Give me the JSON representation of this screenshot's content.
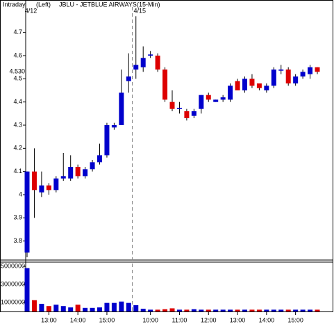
{
  "chart_data": [
    {
      "type": "candlestick",
      "title": "JBLU - JETBLUE AIRWAYS",
      "subtitle": "Intraday",
      "axis_label": "(Left)",
      "interval": "(15-Min)",
      "sessions": [
        {
          "label": "4/12",
          "start": 0
        },
        {
          "label": "4/15",
          "start": 15
        }
      ],
      "categories": [
        null,
        null,
        null,
        "13:00",
        null,
        null,
        null,
        "14:00",
        null,
        null,
        null,
        "15:00",
        null,
        null,
        null,
        null,
        null,
        "10:00",
        null,
        null,
        null,
        "11:00",
        null,
        null,
        null,
        "12:00",
        null,
        null,
        null,
        "13:00",
        null,
        null,
        null,
        "14:00",
        null,
        null,
        null,
        "15:00",
        null,
        null,
        null
      ],
      "open": [
        3.75,
        4.1,
        4.01,
        4.04,
        4.02,
        4.07,
        4.07,
        4.12,
        4.08,
        4.11,
        4.14,
        4.17,
        4.29,
        4.3,
        4.49,
        4.54,
        4.55,
        4.6,
        4.6,
        4.54,
        4.4,
        4.37,
        4.36,
        4.34,
        4.37,
        4.43,
        4.4,
        4.41,
        4.41,
        4.49,
        4.45,
        4.5,
        4.48,
        4.45,
        4.47,
        4.535,
        4.54,
        4.48,
        4.51,
        4.52,
        4.55
      ],
      "high": [
        4.1,
        4.2,
        4.1,
        4.05,
        4.08,
        4.18,
        4.17,
        4.13,
        4.12,
        4.15,
        4.22,
        4.31,
        4.31,
        4.54,
        4.61,
        4.77,
        4.64,
        4.62,
        4.61,
        4.55,
        4.45,
        4.4,
        4.37,
        4.37,
        4.43,
        4.44,
        4.41,
        4.43,
        4.48,
        4.5,
        4.51,
        4.52,
        4.48,
        4.48,
        4.55,
        4.56,
        4.55,
        4.52,
        4.54,
        4.56,
        4.55
      ],
      "low": [
        3.73,
        3.9,
        3.99,
        4.0,
        4.01,
        4.06,
        4.06,
        4.07,
        4.07,
        4.1,
        4.13,
        4.16,
        4.28,
        4.3,
        4.44,
        4.5,
        4.53,
        4.59,
        4.53,
        4.4,
        4.36,
        4.35,
        4.32,
        4.33,
        4.35,
        4.4,
        4.4,
        4.4,
        4.4,
        4.45,
        4.44,
        4.46,
        4.45,
        4.44,
        4.46,
        4.52,
        4.47,
        4.47,
        4.5,
        4.5,
        4.52
      ],
      "close": [
        4.1,
        4.02,
        4.04,
        4.02,
        4.07,
        4.08,
        4.12,
        4.08,
        4.11,
        4.14,
        4.17,
        4.3,
        4.3,
        4.44,
        4.51,
        4.56,
        4.59,
        4.605,
        4.54,
        4.41,
        4.37,
        4.375,
        4.33,
        4.36,
        4.43,
        4.41,
        4.41,
        4.42,
        4.47,
        4.45,
        4.5,
        4.47,
        4.46,
        4.47,
        4.54,
        4.54,
        4.48,
        4.51,
        4.53,
        4.55,
        4.53
      ],
      "up_color": "#0000cc",
      "down_color": "#dd0000",
      "last_price": {
        "value": 4.53,
        "label": "4.530"
      },
      "ylim": [
        3.73,
        4.81
      ],
      "yticks": [
        3.8,
        3.9,
        4.0,
        4.1,
        4.2,
        4.3,
        4.4,
        4.5,
        4.6,
        4.7
      ]
    },
    {
      "type": "bar",
      "values": [
        4800000,
        1250000,
        850000,
        600000,
        750000,
        600000,
        450000,
        750000,
        400000,
        400000,
        450000,
        950000,
        950000,
        1100000,
        950000,
        700000,
        300000,
        200000,
        200000,
        250000,
        350000,
        200000,
        200000,
        250000,
        200000,
        200000,
        200000,
        200000,
        200000,
        200000,
        200000,
        200000,
        200000,
        200000,
        200000,
        200000,
        200000,
        200000,
        200000,
        200000,
        200000
      ],
      "ylim": [
        0,
        5390000
      ],
      "yticks": [
        1000000,
        3000000,
        5000000
      ]
    }
  ]
}
